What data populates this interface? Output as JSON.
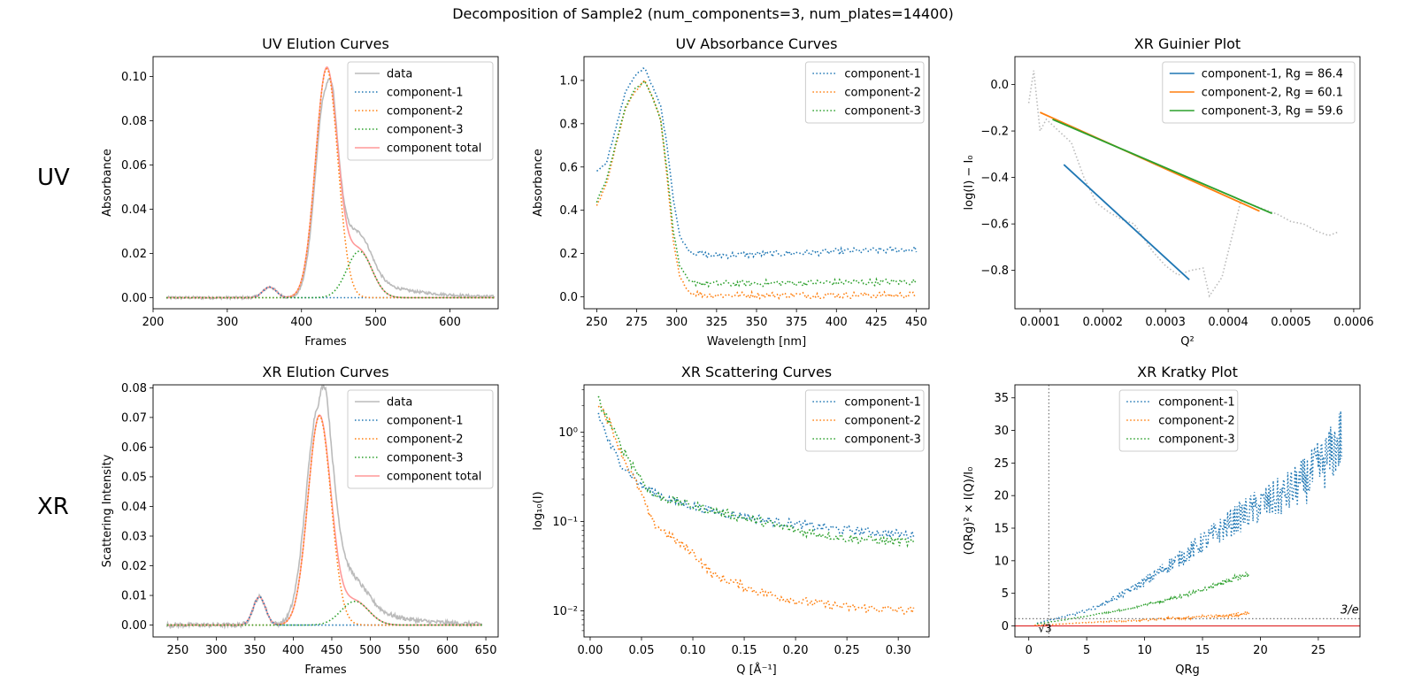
{
  "figure": {
    "suptitle": "Decomposition of Sample2 (num_components=3, num_plates=14400)",
    "row_labels": [
      "UV",
      "XR"
    ]
  },
  "colors": {
    "data": "#bbbbbb",
    "component_1": "#1f77b4",
    "component_2": "#ff7f0e",
    "component_3": "#2ca02c",
    "component_total": "#ff9999",
    "guide_red": "#e03030",
    "guide_grey": "#777777"
  },
  "chart_data": [
    {
      "id": "uv_elution",
      "type": "line",
      "title": "UV Elution Curves",
      "xlabel": "Frames",
      "ylabel": "Absorbance",
      "xlim": [
        200,
        665
      ],
      "ylim": [
        -0.005,
        0.109
      ],
      "xticks": [
        200,
        300,
        400,
        500,
        600
      ],
      "yticks": [
        0.0,
        0.02,
        0.04,
        0.06,
        0.08,
        0.1
      ],
      "ytick_labels": [
        "0.00",
        "0.02",
        "0.04",
        "0.06",
        "0.08",
        "0.10"
      ],
      "legend": [
        "data",
        "component-1",
        "component-2",
        "component-3",
        "component total"
      ],
      "legend_loc": "upper right",
      "x_range": [
        218,
        660
      ],
      "components": [
        {
          "name": "component-1",
          "amp": 0.0048,
          "mu": 357,
          "sigma": 9
        },
        {
          "name": "component-2",
          "amp": 0.1035,
          "mu": 434,
          "sigma": 15
        },
        {
          "name": "component-3",
          "amp": 0.021,
          "mu": 478,
          "sigma": 17
        }
      ],
      "data_curve": {
        "amp": 0.094,
        "mu": 433,
        "sigma": 14,
        "tail_amp": 0.003,
        "tail_decay": 60
      }
    },
    {
      "id": "uv_absorbance",
      "type": "line",
      "title": "UV Absorbance Curves",
      "xlabel": "Wavelength [nm]",
      "ylabel": "Absorbance",
      "xlim": [
        242,
        458
      ],
      "ylim": [
        -0.055,
        1.11
      ],
      "xticks": [
        250,
        275,
        300,
        325,
        350,
        375,
        400,
        425,
        450
      ],
      "yticks": [
        0.0,
        0.2,
        0.4,
        0.6,
        0.8,
        1.0
      ],
      "ytick_labels": [
        "0.0",
        "0.2",
        "0.4",
        "0.6",
        "0.8",
        "1.0"
      ],
      "legend": [
        "component-1",
        "component-2",
        "component-3"
      ],
      "legend_loc": "upper right",
      "x_range": [
        250,
        450
      ],
      "series_points": {
        "component-1": [
          [
            250,
            0.58
          ],
          [
            256,
            0.62
          ],
          [
            262,
            0.78
          ],
          [
            268,
            0.95
          ],
          [
            274,
            1.02
          ],
          [
            280,
            1.06
          ],
          [
            285,
            0.97
          ],
          [
            290,
            0.88
          ],
          [
            294,
            0.7
          ],
          [
            298,
            0.45
          ],
          [
            302,
            0.28
          ],
          [
            308,
            0.21
          ],
          [
            320,
            0.19
          ],
          [
            450,
            0.22
          ]
        ],
        "component-2": [
          [
            250,
            0.42
          ],
          [
            256,
            0.52
          ],
          [
            262,
            0.7
          ],
          [
            268,
            0.87
          ],
          [
            274,
            0.95
          ],
          [
            280,
            1.0
          ],
          [
            285,
            0.92
          ],
          [
            290,
            0.82
          ],
          [
            294,
            0.55
          ],
          [
            298,
            0.25
          ],
          [
            302,
            0.09
          ],
          [
            308,
            0.02
          ],
          [
            320,
            0.008
          ],
          [
            450,
            0.008
          ]
        ],
        "component-3": [
          [
            250,
            0.44
          ],
          [
            256,
            0.54
          ],
          [
            262,
            0.71
          ],
          [
            268,
            0.88
          ],
          [
            274,
            0.96
          ],
          [
            280,
            1.0
          ],
          [
            285,
            0.92
          ],
          [
            290,
            0.82
          ],
          [
            294,
            0.58
          ],
          [
            298,
            0.3
          ],
          [
            302,
            0.14
          ],
          [
            308,
            0.07
          ],
          [
            320,
            0.06
          ],
          [
            450,
            0.07
          ]
        ]
      }
    },
    {
      "id": "xr_guinier",
      "type": "line",
      "title": "XR Guinier Plot",
      "xlabel": "Q²",
      "ylabel": "log(I) − I₀",
      "xlim": [
        6e-05,
        0.00061
      ],
      "ylim": [
        -0.965,
        0.12
      ],
      "xticks": [
        0.0001,
        0.0002,
        0.0003,
        0.0004,
        0.0005,
        0.0006
      ],
      "xtick_labels": [
        "0.0001",
        "0.0002",
        "0.0003",
        "0.0004",
        "0.0005",
        "0.0006"
      ],
      "yticks": [
        0.0,
        -0.2,
        -0.4,
        -0.6,
        -0.8
      ],
      "ytick_labels": [
        "0.0",
        "−0.2",
        "−0.4",
        "−0.6",
        "−0.8"
      ],
      "legend": [
        "component-1, Rg = 86.4",
        "component-2, Rg = 60.1",
        "component-3, Rg = 59.6"
      ],
      "legend_loc": "upper right",
      "fit_lines": {
        "component-1": [
          [
            0.000138,
            -0.345
          ],
          [
            0.000338,
            -0.84
          ]
        ],
        "component-2": [
          [
            0.0001,
            -0.12
          ],
          [
            0.00045,
            -0.545
          ]
        ],
        "component-3": [
          [
            0.00012,
            -0.15
          ],
          [
            0.00047,
            -0.555
          ]
        ]
      },
      "data_points": [
        [
          8.2e-05,
          -0.08
        ],
        [
          9e-05,
          0.06
        ],
        [
          0.0001,
          -0.2
        ],
        [
          0.00011,
          -0.15
        ],
        [
          0.00013,
          -0.2
        ],
        [
          0.00015,
          -0.25
        ],
        [
          0.00017,
          -0.4
        ],
        [
          0.00019,
          -0.51
        ],
        [
          0.00021,
          -0.55
        ],
        [
          0.00023,
          -0.58
        ],
        [
          0.00025,
          -0.6
        ],
        [
          0.00028,
          -0.72
        ],
        [
          0.0003,
          -0.78
        ],
        [
          0.00032,
          -0.82
        ],
        [
          0.00034,
          -0.8
        ],
        [
          0.00036,
          -0.79
        ],
        [
          0.00037,
          -0.91
        ],
        [
          0.00039,
          -0.83
        ],
        [
          0.00042,
          -0.5
        ],
        [
          0.00045,
          -0.53
        ],
        [
          0.00048,
          -0.56
        ],
        [
          0.0005,
          -0.59
        ],
        [
          0.00052,
          -0.6
        ],
        [
          0.00054,
          -0.63
        ],
        [
          0.00056,
          -0.65
        ],
        [
          0.000575,
          -0.635
        ]
      ]
    },
    {
      "id": "xr_elution",
      "type": "line",
      "title": "XR Elution Curves",
      "xlabel": "Frames",
      "ylabel": "Scattering Intensity",
      "xlim": [
        218,
        666
      ],
      "ylim": [
        -0.004,
        0.081
      ],
      "xticks": [
        250,
        300,
        350,
        400,
        450,
        500,
        550,
        600,
        650
      ],
      "yticks": [
        0.0,
        0.01,
        0.02,
        0.03,
        0.04,
        0.05,
        0.06,
        0.07,
        0.08
      ],
      "ytick_labels": [
        "0.00",
        "0.01",
        "0.02",
        "0.03",
        "0.04",
        "0.05",
        "0.06",
        "0.07",
        "0.08"
      ],
      "legend": [
        "data",
        "component-1",
        "component-2",
        "component-3",
        "component total"
      ],
      "legend_loc": "upper right",
      "x_range": [
        236,
        645
      ],
      "components": [
        {
          "name": "component-1",
          "amp": 0.0095,
          "mu": 356,
          "sigma": 8
        },
        {
          "name": "component-2",
          "amp": 0.0705,
          "mu": 434,
          "sigma": 15
        },
        {
          "name": "component-3",
          "amp": 0.008,
          "mu": 480,
          "sigma": 18
        }
      ],
      "data_curve": {
        "amp": 0.074,
        "mu": 433,
        "sigma": 16,
        "tail_amp": 0.003,
        "tail_decay": 50,
        "noise": 0.0015
      }
    },
    {
      "id": "xr_scattering",
      "type": "line",
      "title": "XR Scattering Curves",
      "xlabel": "Q [Å⁻¹]",
      "ylabel": "log₁₀(I)",
      "yscale": "log",
      "xlim": [
        -0.006,
        0.33
      ],
      "ylim": [
        0.0051,
        3.4
      ],
      "xticks": [
        0.0,
        0.05,
        0.1,
        0.15,
        0.2,
        0.25,
        0.3
      ],
      "xtick_labels": [
        "0.00",
        "0.05",
        "0.10",
        "0.15",
        "0.20",
        "0.25",
        "0.30"
      ],
      "yticks": [
        1,
        0.1,
        0.01
      ],
      "ytick_labels": [
        "10⁰",
        "10⁻¹",
        "10⁻²"
      ],
      "legend": [
        "component-1",
        "component-2",
        "component-3"
      ],
      "legend_loc": "upper right",
      "x_range": [
        0.008,
        0.315
      ],
      "series_points": {
        "component-1": [
          [
            0.008,
            1.6
          ],
          [
            0.02,
            0.7
          ],
          [
            0.03,
            0.45
          ],
          [
            0.05,
            0.25
          ],
          [
            0.08,
            0.17
          ],
          [
            0.12,
            0.13
          ],
          [
            0.18,
            0.1
          ],
          [
            0.25,
            0.08
          ],
          [
            0.315,
            0.07
          ]
        ],
        "component-2": [
          [
            0.008,
            2.2
          ],
          [
            0.02,
            1.2
          ],
          [
            0.03,
            0.6
          ],
          [
            0.05,
            0.2
          ],
          [
            0.06,
            0.1
          ],
          [
            0.08,
            0.065
          ],
          [
            0.1,
            0.045
          ],
          [
            0.12,
            0.025
          ],
          [
            0.16,
            0.017
          ],
          [
            0.2,
            0.013
          ],
          [
            0.25,
            0.011
          ],
          [
            0.315,
            0.01
          ]
        ],
        "component-3": [
          [
            0.008,
            2.3
          ],
          [
            0.02,
            1.2
          ],
          [
            0.03,
            0.7
          ],
          [
            0.05,
            0.3
          ],
          [
            0.06,
            0.2
          ],
          [
            0.1,
            0.15
          ],
          [
            0.15,
            0.11
          ],
          [
            0.2,
            0.08
          ],
          [
            0.25,
            0.065
          ],
          [
            0.315,
            0.058
          ]
        ]
      }
    },
    {
      "id": "xr_kratky",
      "type": "line",
      "title": "XR Kratky Plot",
      "xlabel": "QRg",
      "ylabel": "(QRg)² × I(Q)/I₀",
      "xlim": [
        -1.2,
        28.6
      ],
      "ylim": [
        -1.7,
        37
      ],
      "xticks": [
        0,
        5,
        10,
        15,
        20,
        25
      ],
      "yticks": [
        0,
        5,
        10,
        15,
        20,
        25,
        30,
        35
      ],
      "legend": [
        "component-1",
        "component-2",
        "component-3"
      ],
      "legend_loc": "upper center",
      "annotations": [
        "3/e",
        "√3"
      ],
      "guides": {
        "hline_zero": 0,
        "hline_3e": 1.104,
        "vline_sqrt3": 1.732
      },
      "series_points": {
        "component-1": [
          [
            0.7,
            0.4
          ],
          [
            2,
            1.0
          ],
          [
            4,
            1.8
          ],
          [
            6,
            3.0
          ],
          [
            8,
            4.8
          ],
          [
            10,
            6.8
          ],
          [
            12,
            9.2
          ],
          [
            14,
            11.5
          ],
          [
            16,
            14
          ],
          [
            18,
            16.5
          ],
          [
            20,
            18.5
          ],
          [
            22,
            20
          ],
          [
            24,
            22.5
          ],
          [
            26,
            26
          ],
          [
            27,
            29
          ]
        ],
        "component-2": [
          [
            0.5,
            0.1
          ],
          [
            3,
            0.3
          ],
          [
            6,
            0.6
          ],
          [
            10,
            0.9
          ],
          [
            14,
            1.3
          ],
          [
            17,
            1.6
          ],
          [
            19,
            1.9
          ]
        ],
        "component-3": [
          [
            0.7,
            0.3
          ],
          [
            3,
            0.9
          ],
          [
            6,
            1.8
          ],
          [
            9,
            2.8
          ],
          [
            12,
            4.0
          ],
          [
            15,
            5.5
          ],
          [
            17,
            6.8
          ],
          [
            19,
            8.0
          ]
        ]
      },
      "series_noise": {
        "component-1": 0.12,
        "component-2": 0.15,
        "component-3": 0.05
      }
    }
  ]
}
